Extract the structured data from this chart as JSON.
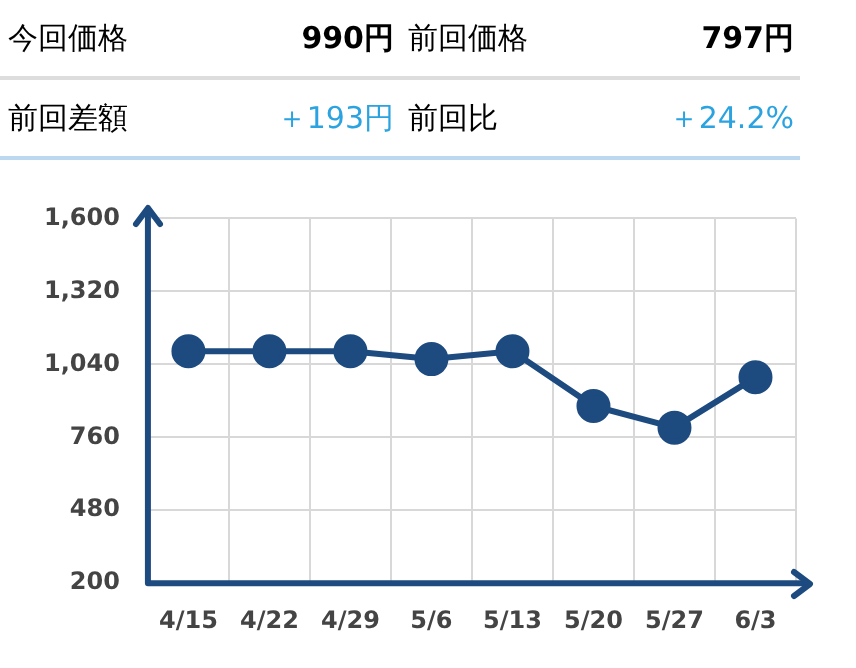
{
  "chart_data": [
    {
      "type": "other",
      "annotations": [
        "今回価格",
        "990円",
        "前回価格",
        "797円",
        "前回差額",
        "＋193円",
        "前回比",
        "＋24.2%"
      ]
    },
    {
      "type": "line",
      "categories": [
        "4/15",
        "4/22",
        "4/29",
        "5/6",
        "5/13",
        "5/20",
        "5/27",
        "6/3"
      ],
      "series": [
        {
          "color": "#1d4b80",
          "values": [
            1090,
            1090,
            1090,
            1060,
            1090,
            880,
            797,
            990
          ]
        }
      ],
      "ylim": [
        200,
        1600
      ],
      "yticks": [
        200,
        480,
        760,
        {
          "value": 1040,
          "label": "1,040"
        },
        {
          "value": 1320,
          "label": "1,320"
        },
        {
          "value": 1600,
          "label": "1,600"
        }
      ],
      "grid": true,
      "legend": false,
      "marker": "circle",
      "line_style": "solid"
    }
  ]
}
